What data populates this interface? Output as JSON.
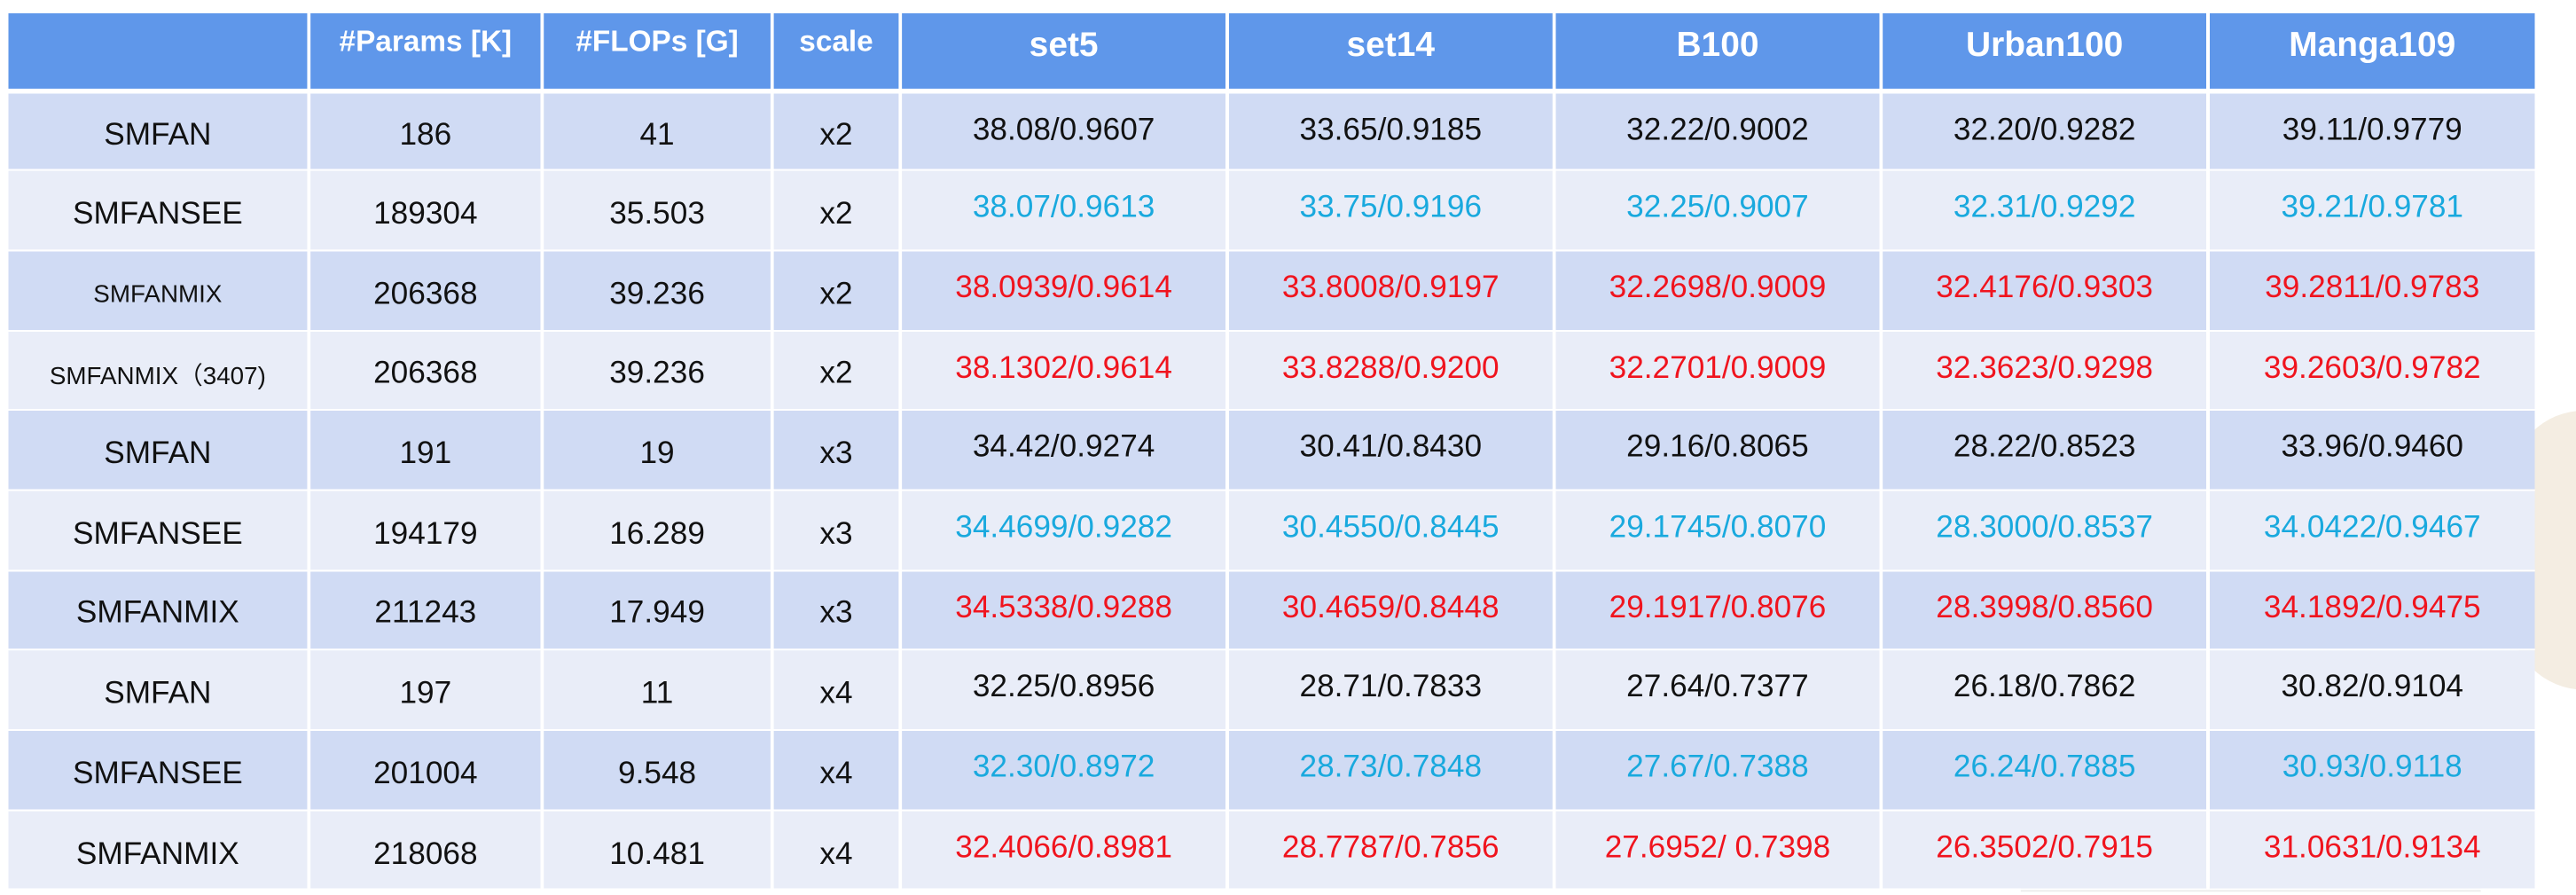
{
  "colors": {
    "header_bg": "#5f97ea",
    "row_dark": "#d0dbf4",
    "row_light": "#e9edf8",
    "baseline_text": "#111111",
    "blue_text": "#19a9de",
    "red_text": "#f0141e"
  },
  "table": {
    "headers": [
      "",
      "#Params [K]",
      "#FLOPs [G]",
      "scale",
      "set5",
      "set14",
      "B100",
      "Urban100",
      "Manga109"
    ],
    "rows": [
      {
        "method": "SMFAN",
        "params": "186",
        "flops": "41",
        "scale": "x2",
        "style": "black",
        "values": [
          "38.08/0.9607",
          "33.65/0.9185",
          "32.22/0.9002",
          "32.20/0.9282",
          "39.11/0.9779"
        ]
      },
      {
        "method": "SMFANSEE",
        "params": "189304",
        "flops": "35.503",
        "scale": "x2",
        "style": "blue",
        "values": [
          "38.07/0.9613",
          "33.75/0.9196",
          "32.25/0.9007",
          "32.31/0.9292",
          "39.21/0.9781"
        ]
      },
      {
        "method": "SMFANMIX",
        "params": "206368",
        "flops": "39.236",
        "scale": "x2",
        "style": "red",
        "values": [
          "38.0939/0.9614",
          "33.8008/0.9197",
          "32.2698/0.9009",
          "32.4176/0.9303",
          "39.2811/0.9783"
        ]
      },
      {
        "method": "SMFANMIX（3407)",
        "params": "206368",
        "flops": "39.236",
        "scale": "x2",
        "style": "red",
        "values": [
          "38.1302/0.9614",
          "33.8288/0.9200",
          "32.2701/0.9009",
          "32.3623/0.9298",
          "39.2603/0.9782"
        ]
      },
      {
        "method": "SMFAN",
        "params": "191",
        "flops": "19",
        "scale": "x3",
        "style": "black",
        "values": [
          "34.42/0.9274",
          "30.41/0.8430",
          "29.16/0.8065",
          "28.22/0.8523",
          "33.96/0.9460"
        ]
      },
      {
        "method": "SMFANSEE",
        "params": "194179",
        "flops": "16.289",
        "scale": "x3",
        "style": "blue",
        "values": [
          "34.4699/0.9282",
          "30.4550/0.8445",
          "29.1745/0.8070",
          "28.3000/0.8537",
          "34.0422/0.9467"
        ]
      },
      {
        "method": "SMFANMIX",
        "params": "211243",
        "flops": "17.949",
        "scale": "x3",
        "style": "red",
        "values": [
          "34.5338/0.9288",
          "30.4659/0.8448",
          "29.1917/0.8076",
          "28.3998/0.8560",
          "34.1892/0.9475"
        ]
      },
      {
        "method": "SMFAN",
        "params": "197",
        "flops": "11",
        "scale": "x4",
        "style": "black",
        "values": [
          "32.25/0.8956",
          "28.71/0.7833",
          "27.64/0.7377",
          "26.18/0.7862",
          "30.82/0.9104"
        ]
      },
      {
        "method": "SMFANSEE",
        "params": "201004",
        "flops": "9.548",
        "scale": "x4",
        "style": "blue",
        "values": [
          "32.30/0.8972",
          "28.73/0.7848",
          "27.67/0.7388",
          "26.24/0.7885",
          "30.93/0.9118"
        ]
      },
      {
        "method": "SMFANMIX",
        "params": "218068",
        "flops": "10.481",
        "scale": "x4",
        "style": "red",
        "values": [
          "32.4066/0.8981",
          "28.7787/0.7856",
          "27.6952/ 0.7398",
          "26.3502/0.7915",
          "31.0631/0.9134"
        ]
      }
    ]
  }
}
